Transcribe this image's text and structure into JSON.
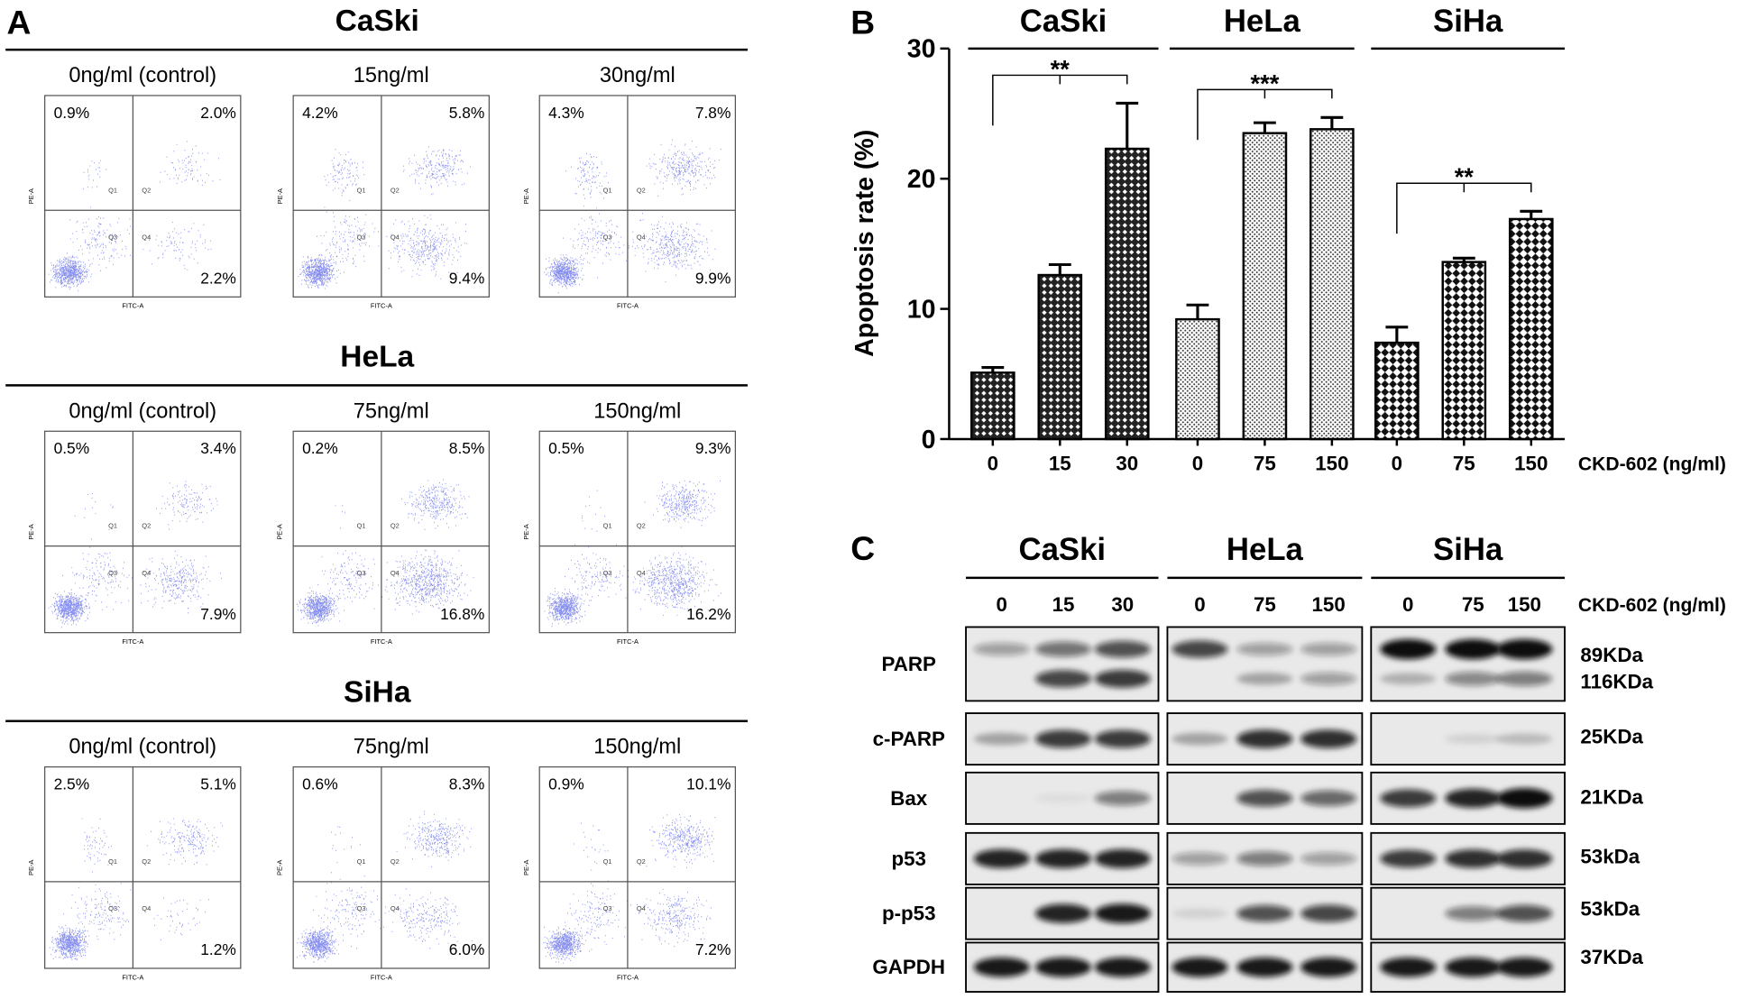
{
  "panel_a": {
    "label": "A",
    "x_axis_label": "FITC-A",
    "y_axis_label": "PE-A",
    "quadrant_labels": [
      "Q1",
      "Q2",
      "Q3",
      "Q4"
    ],
    "cell_lines": [
      {
        "name": "CaSki",
        "plots": [
          {
            "dose": "0ng/ml (control)",
            "q1": "0.9%",
            "q2": "2.0%",
            "q4": "2.2%"
          },
          {
            "dose": "15ng/ml",
            "q1": "4.2%",
            "q2": "5.8%",
            "q4": "9.4%"
          },
          {
            "dose": "30ng/ml",
            "q1": "4.3%",
            "q2": "7.8%",
            "q4": "9.9%"
          }
        ]
      },
      {
        "name": "HeLa",
        "plots": [
          {
            "dose": "0ng/ml (control)",
            "q1": "0.5%",
            "q2": "3.4%",
            "q4": "7.9%"
          },
          {
            "dose": "75ng/ml",
            "q1": "0.2%",
            "q2": "8.5%",
            "q4": "16.8%"
          },
          {
            "dose": "150ng/ml",
            "q1": "0.5%",
            "q2": "9.3%",
            "q4": "16.2%"
          }
        ]
      },
      {
        "name": "SiHa",
        "plots": [
          {
            "dose": "0ng/ml (control)",
            "q1": "2.5%",
            "q2": "5.1%",
            "q4": "1.2%"
          },
          {
            "dose": "75ng/ml",
            "q1": "0.6%",
            "q2": "8.3%",
            "q4": "6.0%"
          },
          {
            "dose": "150ng/ml",
            "q1": "0.9%",
            "q2": "10.1%",
            "q4": "7.2%"
          }
        ]
      }
    ]
  },
  "chart_data": {
    "type": "bar",
    "label": "B",
    "ylabel": "Apoptosis rate (%)",
    "xlabel": "CKD-602 (ng/ml)",
    "ylim": [
      0,
      30
    ],
    "yticks": [
      0,
      10,
      20,
      30
    ],
    "groups": [
      {
        "name": "CaSki",
        "pattern": "crosshatch",
        "categories": [
          "0",
          "15",
          "30"
        ],
        "values": [
          5.1,
          12.6,
          22.3
        ],
        "errors": [
          0.4,
          0.8,
          3.5
        ]
      },
      {
        "name": "HeLa",
        "pattern": "dots",
        "categories": [
          "0",
          "75",
          "150"
        ],
        "values": [
          9.2,
          23.5,
          23.8
        ],
        "errors": [
          1.1,
          0.8,
          0.9
        ]
      },
      {
        "name": "SiHa",
        "pattern": "checker",
        "categories": [
          "0",
          "75",
          "150"
        ],
        "values": [
          7.4,
          13.6,
          16.9
        ],
        "errors": [
          1.2,
          0.3,
          0.6
        ]
      }
    ],
    "annotations": [
      {
        "text": "**",
        "group": 0
      },
      {
        "text": "***",
        "group": 1
      },
      {
        "text": "**",
        "group": 2
      }
    ]
  },
  "panel_c": {
    "label": "C",
    "cell_lines": [
      "CaSki",
      "HeLa",
      "SiHa"
    ],
    "doses": [
      [
        "0",
        "15",
        "30"
      ],
      [
        "0",
        "75",
        "150"
      ],
      [
        "0",
        "75",
        "150"
      ]
    ],
    "dose_label": "CKD-602 (ng/ml)",
    "rows": [
      {
        "protein": "PARP",
        "sizes": [
          "89KDa",
          "116KDa"
        ]
      },
      {
        "protein": "c-PARP",
        "sizes": [
          "25KDa"
        ]
      },
      {
        "protein": "Bax",
        "sizes": [
          "21KDa"
        ]
      },
      {
        "protein": "p53",
        "sizes": [
          "53kDa"
        ]
      },
      {
        "protein": "p-p53",
        "sizes": [
          "53kDa"
        ]
      },
      {
        "protein": "GAPDH",
        "sizes": [
          "37KDa"
        ]
      }
    ]
  }
}
